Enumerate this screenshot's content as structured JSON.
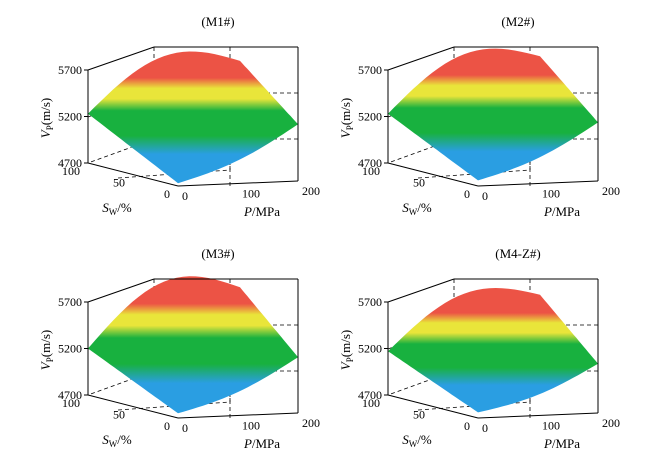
{
  "colors": {
    "low": "#2a9ee2",
    "mid_low": "#18b13f",
    "mid": "#e9e53a",
    "high": "#ec5345",
    "frame": "#000000",
    "background": "#ffffff"
  },
  "chart_data": [
    {
      "type": "surface",
      "title": "(M1#)",
      "xlabel_var": "P",
      "xlabel_unit": "/MPa",
      "ylabel_var": "S",
      "ylabel_sub": "W",
      "ylabel_unit": "/%",
      "zlabel_var": "V",
      "zlabel_sub": "P",
      "zlabel_unit": "(m/s)",
      "x_range": [
        0,
        200
      ],
      "x_ticks": [
        0,
        100,
        200
      ],
      "y_range": [
        0,
        100
      ],
      "y_ticks": [
        0,
        50,
        100
      ],
      "z_range": [
        4700,
        5700
      ],
      "z_ticks": [
        4700,
        5200,
        5700
      ],
      "corner_values": {
        "P0_S0": 4730,
        "P200_S0": 5310,
        "P0_S100": 5230,
        "P200_S100": 5540,
        "P100_S100": 5720
      }
    },
    {
      "type": "surface",
      "title": "(M2#)",
      "xlabel_var": "P",
      "xlabel_unit": "/MPa",
      "ylabel_var": "S",
      "ylabel_sub": "W",
      "ylabel_unit": "/%",
      "zlabel_var": "V",
      "zlabel_sub": "P",
      "zlabel_unit": "(m/s)",
      "x_range": [
        0,
        200
      ],
      "x_ticks": [
        0,
        100,
        200
      ],
      "y_range": [
        0,
        100
      ],
      "y_ticks": [
        0,
        50,
        100
      ],
      "z_range": [
        4700,
        5700
      ],
      "z_ticks": [
        4700,
        5200,
        5700
      ],
      "corner_values": {
        "P0_S0": 4760,
        "P200_S0": 5330,
        "P0_S100": 5230,
        "P200_S100": 5590,
        "P100_S100": 5740
      }
    },
    {
      "type": "surface",
      "title": "(M3#)",
      "xlabel_var": "P",
      "xlabel_unit": "/MPa",
      "ylabel_var": "S",
      "ylabel_sub": "W",
      "ylabel_unit": "/%",
      "zlabel_var": "V",
      "zlabel_sub": "P",
      "zlabel_unit": "(m/s)",
      "x_range": [
        0,
        200
      ],
      "x_ticks": [
        0,
        100,
        200
      ],
      "y_range": [
        0,
        100
      ],
      "y_ticks": [
        0,
        50,
        100
      ],
      "z_range": [
        4700,
        5700
      ],
      "z_ticks": [
        4700,
        5200,
        5700
      ],
      "corner_values": {
        "P0_S0": 4750,
        "P200_S0": 5300,
        "P0_S100": 5200,
        "P200_S100": 5600,
        "P100_S100": 5790
      }
    },
    {
      "type": "surface",
      "title": "(M4-Z#)",
      "xlabel_var": "P",
      "xlabel_unit": "/MPa",
      "ylabel_var": "S",
      "ylabel_sub": "W",
      "ylabel_unit": "/%",
      "zlabel_var": "V",
      "zlabel_sub": "P",
      "zlabel_unit": "(m/s)",
      "x_range": [
        0,
        200
      ],
      "x_ticks": [
        0,
        100,
        200
      ],
      "y_range": [
        0,
        100
      ],
      "y_ticks": [
        0,
        50,
        100
      ],
      "z_range": [
        4700,
        5700
      ],
      "z_ticks": [
        4700,
        5200,
        5700
      ],
      "corner_values": {
        "P0_S0": 4760,
        "P200_S0": 5230,
        "P0_S100": 5170,
        "P200_S100": 5520,
        "P100_S100": 5660
      }
    }
  ]
}
